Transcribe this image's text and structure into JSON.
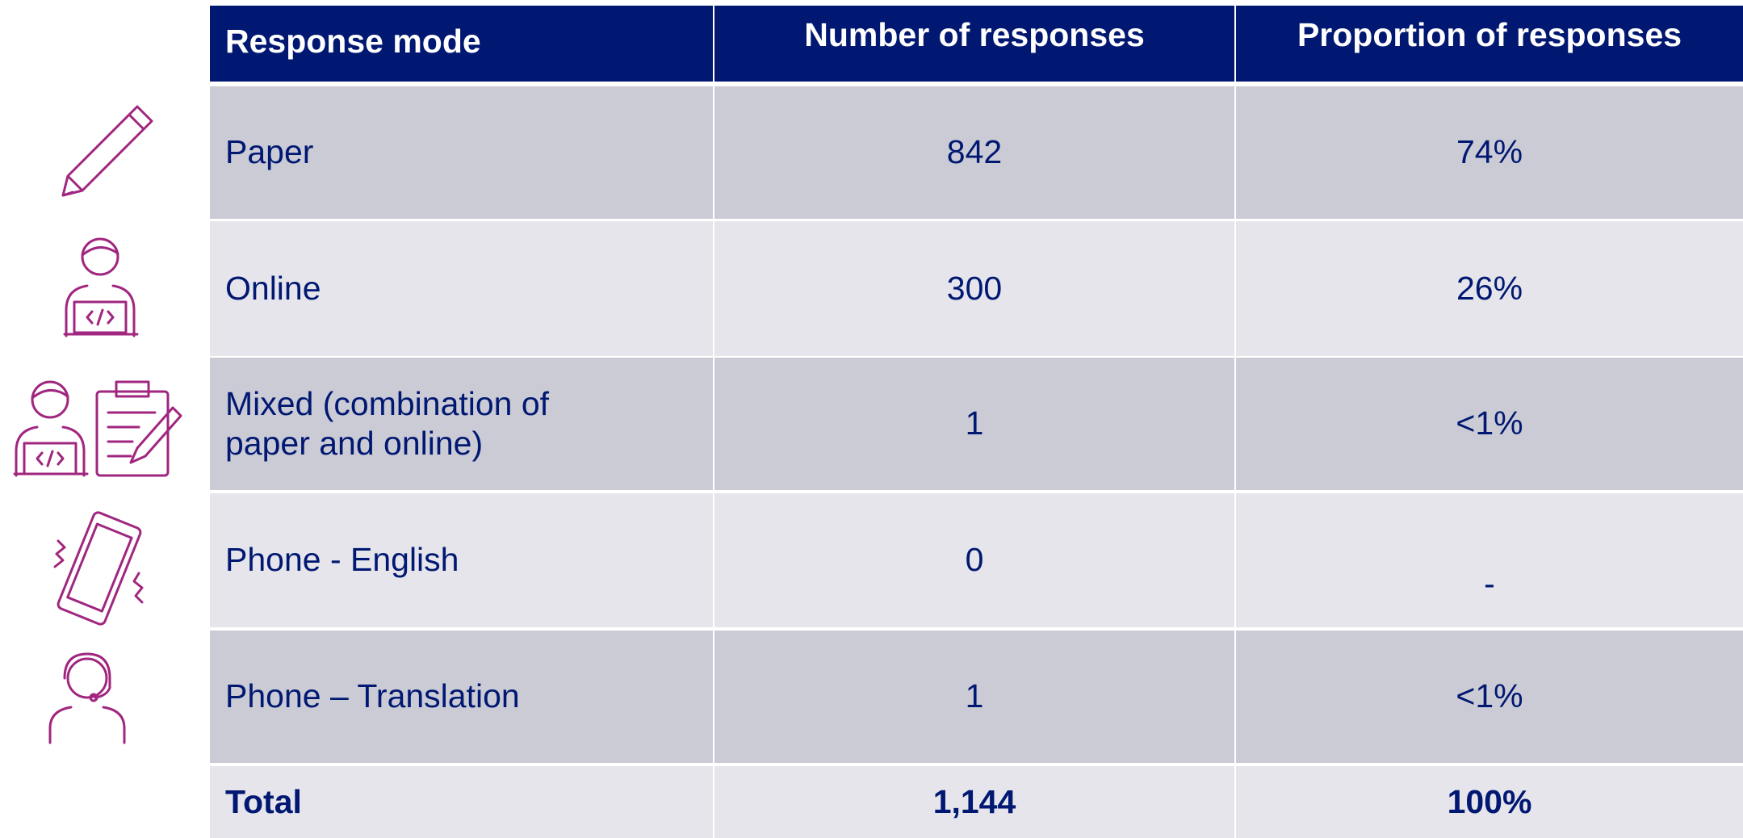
{
  "table": {
    "header": [
      "Response mode",
      "Number of responses",
      "Proportion of responses"
    ],
    "rows": [
      [
        "Paper",
        "842",
        "74%"
      ],
      [
        "Online",
        "300",
        "26%"
      ],
      [
        "Mixed (combination of paper and online)",
        "1",
        "<1%"
      ],
      [
        "Phone - English",
        "0",
        "-"
      ],
      [
        "Phone – Translation",
        "1",
        "<1%"
      ]
    ],
    "total": [
      "Total",
      "1,144",
      "100%"
    ]
  }
}
